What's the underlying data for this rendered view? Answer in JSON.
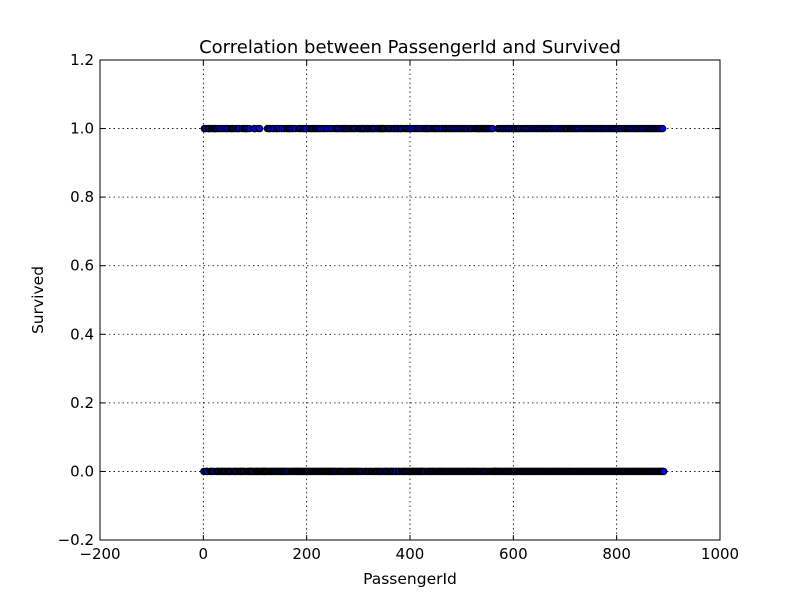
{
  "chart_data": {
    "type": "scatter",
    "title": "Correlation between PassengerId and Survived",
    "xlabel": "PassengerId",
    "ylabel": "Survived",
    "xlim": [
      -200,
      1000
    ],
    "ylim": [
      -0.2,
      1.2
    ],
    "x_ticks": [
      -200,
      0,
      200,
      400,
      600,
      800,
      1000
    ],
    "x_tick_labels": [
      "−200",
      "0",
      "200",
      "400",
      "600",
      "800",
      "1000"
    ],
    "y_ticks": [
      -0.2,
      0.0,
      0.2,
      0.4,
      0.6,
      0.8,
      1.0,
      1.2
    ],
    "y_tick_labels": [
      "−0.2",
      "0.0",
      "0.2",
      "0.4",
      "0.6",
      "0.8",
      "1.0",
      "1.2"
    ],
    "grid": true,
    "marker_color": "#0000ff",
    "marker_edge_color": "#000000",
    "series": [
      {
        "values_y": 1,
        "x": [
          2,
          3,
          4,
          9,
          10,
          11,
          12,
          16,
          18,
          20,
          22,
          23,
          24,
          26,
          29,
          32,
          33,
          37,
          40,
          44,
          45,
          48,
          53,
          54,
          56,
          57,
          59,
          62,
          66,
          67,
          69,
          75,
          79,
          80,
          82,
          83,
          85,
          89,
          98,
          99,
          100,
          107,
          109,
          124,
          126,
          128,
          130,
          134,
          137,
          142,
          143,
          147,
          152,
          157,
          162,
          163,
          166,
          167,
          170,
          173,
          178,
          185,
          187,
          191,
          194,
          196,
          199,
          205,
          208,
          210,
          212,
          215,
          217,
          219,
          222,
          225,
          227,
          231,
          234,
          238,
          241,
          246,
          249,
          254,
          257,
          259,
          260,
          262,
          266,
          269,
          270,
          273,
          275,
          276,
          278,
          281,
          284,
          287,
          290,
          292,
          294,
          299,
          301,
          303,
          305,
          307,
          308,
          310,
          311,
          312,
          316,
          317,
          319,
          320,
          323,
          324,
          326,
          328,
          330,
          331,
          335,
          338,
          339,
          342,
          344,
          346,
          348,
          349,
          352,
          356,
          359,
          360,
          364,
          368,
          370,
          371,
          375,
          376,
          377,
          381,
          382,
          383,
          386,
          390,
          392,
          395,
          396,
          400,
          401,
          404,
          408,
          412,
          415,
          418,
          423,
          427,
          430,
          431,
          432,
          435,
          437,
          441,
          445,
          447,
          449,
          451,
          454,
          456,
          460,
          463,
          467,
          469,
          471,
          474,
          476,
          479,
          482,
          484,
          486,
          489,
          491,
          494,
          497,
          499,
          502,
          505,
          507,
          510,
          512,
          516,
          518,
          520,
          524,
          527,
          529,
          531,
          533,
          535,
          537,
          540,
          542,
          544,
          546,
          548,
          550,
          551,
          553,
          556,
          558,
          560,
          570,
          573,
          576,
          579,
          581,
          584,
          587,
          590,
          592,
          596,
          599,
          602,
          605,
          608,
          610,
          612,
          616,
          619,
          622,
          625,
          628,
          631,
          635,
          638,
          641,
          644,
          647,
          650,
          653,
          656,
          659,
          662,
          664,
          666,
          670,
          673,
          676,
          679,
          682,
          686,
          690,
          692,
          695,
          698,
          701,
          703,
          705,
          709,
          711,
          713,
          716,
          718,
          720,
          722,
          725,
          727,
          731,
          734,
          737,
          740,
          743,
          746,
          749,
          751,
          754,
          756,
          759,
          762,
          765,
          768,
          770,
          773,
          775,
          778,
          781,
          784,
          787,
          790,
          792,
          795,
          797,
          800,
          803,
          805,
          808,
          810,
          814,
          817,
          820,
          822,
          825,
          828,
          831,
          834,
          837,
          840,
          843,
          846,
          848,
          851,
          854,
          857,
          859,
          862,
          864,
          867,
          870,
          872,
          875,
          877,
          880,
          883,
          886,
          889
        ]
      },
      {
        "values_y": 0,
        "x": [
          1,
          5,
          6,
          7,
          8,
          13,
          14,
          15,
          17,
          19,
          21,
          25,
          27,
          28,
          30,
          31,
          34,
          35,
          36,
          38,
          39,
          41,
          42,
          43,
          46,
          47,
          49,
          50,
          51,
          52,
          55,
          58,
          60,
          61,
          63,
          64,
          65,
          68,
          70,
          71,
          72,
          73,
          74,
          76,
          77,
          78,
          81,
          84,
          86,
          87,
          88,
          90,
          91,
          92,
          93,
          94,
          95,
          96,
          97,
          101,
          102,
          103,
          104,
          105,
          106,
          108,
          110,
          111,
          112,
          113,
          114,
          115,
          116,
          117,
          118,
          119,
          120,
          121,
          122,
          123,
          125,
          127,
          129,
          131,
          132,
          133,
          135,
          136,
          138,
          139,
          140,
          141,
          144,
          145,
          146,
          148,
          149,
          150,
          151,
          153,
          154,
          155,
          156,
          158,
          159,
          160,
          161,
          164,
          165,
          168,
          169,
          171,
          172,
          174,
          175,
          176,
          177,
          179,
          180,
          181,
          182,
          183,
          184,
          186,
          188,
          189,
          190,
          192,
          193,
          195,
          197,
          198,
          200,
          201,
          202,
          203,
          204,
          206,
          207,
          209,
          211,
          213,
          214,
          216,
          218,
          220,
          221,
          223,
          224,
          226,
          228,
          229,
          230,
          232,
          233,
          235,
          236,
          237,
          239,
          240,
          242,
          243,
          244,
          245,
          247,
          248,
          250,
          251,
          252,
          253,
          255,
          256,
          258,
          261,
          263,
          264,
          265,
          267,
          268,
          271,
          272,
          274,
          277,
          279,
          280,
          282,
          283,
          285,
          286,
          288,
          289,
          291,
          293,
          295,
          296,
          297,
          298,
          300,
          302,
          304,
          306,
          309,
          313,
          314,
          315,
          318,
          321,
          322,
          325,
          327,
          329,
          332,
          333,
          334,
          336,
          337,
          340,
          341,
          343,
          345,
          347,
          350,
          351,
          353,
          354,
          355,
          357,
          358,
          361,
          362,
          363,
          365,
          366,
          367,
          369,
          372,
          373,
          374,
          378,
          379,
          380,
          384,
          385,
          387,
          388,
          389,
          391,
          393,
          394,
          397,
          398,
          399,
          402,
          403,
          405,
          406,
          407,
          409,
          410,
          411,
          413,
          414,
          416,
          417,
          419,
          420,
          421,
          422,
          424,
          425,
          426,
          428,
          429,
          433,
          434,
          436,
          438,
          439,
          440,
          442,
          443,
          444,
          446,
          448,
          450,
          452,
          453,
          455,
          457,
          458,
          459,
          461,
          462,
          464,
          465,
          466,
          468,
          470,
          472,
          473,
          475,
          477,
          478,
          480,
          481,
          483,
          485,
          487,
          488,
          490,
          492,
          493,
          495,
          496,
          498,
          500,
          501,
          503,
          504,
          506,
          508,
          509,
          511,
          513,
          514,
          515,
          517,
          519,
          521,
          522,
          523,
          525,
          526,
          528,
          530,
          532,
          534,
          536,
          538,
          539,
          541,
          543,
          545,
          547,
          549,
          552,
          554,
          555,
          557,
          559,
          561,
          562,
          563,
          564,
          565,
          566,
          567,
          568,
          569,
          571,
          572,
          574,
          575,
          577,
          578,
          580,
          582,
          583,
          585,
          586,
          588,
          589,
          591,
          593,
          594,
          595,
          597,
          598,
          600,
          601,
          603,
          604,
          606,
          607,
          609,
          611,
          613,
          614,
          615,
          617,
          618,
          620,
          621,
          623,
          624,
          626,
          627,
          629,
          630,
          632,
          633,
          634,
          636,
          637,
          639,
          640,
          642,
          643,
          645,
          646,
          648,
          649,
          651,
          652,
          654,
          655,
          657,
          658,
          660,
          661,
          663,
          665,
          667,
          668,
          669,
          671,
          672,
          674,
          675,
          677,
          678,
          680,
          681,
          683,
          684,
          685,
          687,
          688,
          689,
          691,
          693,
          694,
          696,
          697,
          699,
          700,
          702,
          704,
          706,
          707,
          708,
          710,
          712,
          714,
          715,
          717,
          719,
          721,
          723,
          724,
          726,
          728,
          729,
          730,
          732,
          733,
          735,
          736,
          738,
          739,
          741,
          742,
          744,
          745,
          747,
          748,
          750,
          752,
          753,
          755,
          757,
          758,
          760,
          761,
          763,
          764,
          766,
          767,
          769,
          771,
          772,
          774,
          776,
          777,
          779,
          780,
          782,
          783,
          785,
          786,
          788,
          789,
          791,
          793,
          794,
          796,
          798,
          799,
          801,
          802,
          804,
          806,
          807,
          809,
          811,
          812,
          813,
          815,
          816,
          818,
          819,
          821,
          823,
          824,
          826,
          827,
          829,
          830,
          832,
          833,
          835,
          836,
          838,
          839,
          841,
          842,
          844,
          845,
          847,
          849,
          850,
          852,
          853,
          855,
          856,
          858,
          860,
          861,
          863,
          865,
          866,
          868,
          869,
          871,
          873,
          874,
          876,
          878,
          879,
          881,
          882,
          884,
          885,
          887,
          888,
          890,
          891
        ]
      }
    ]
  }
}
